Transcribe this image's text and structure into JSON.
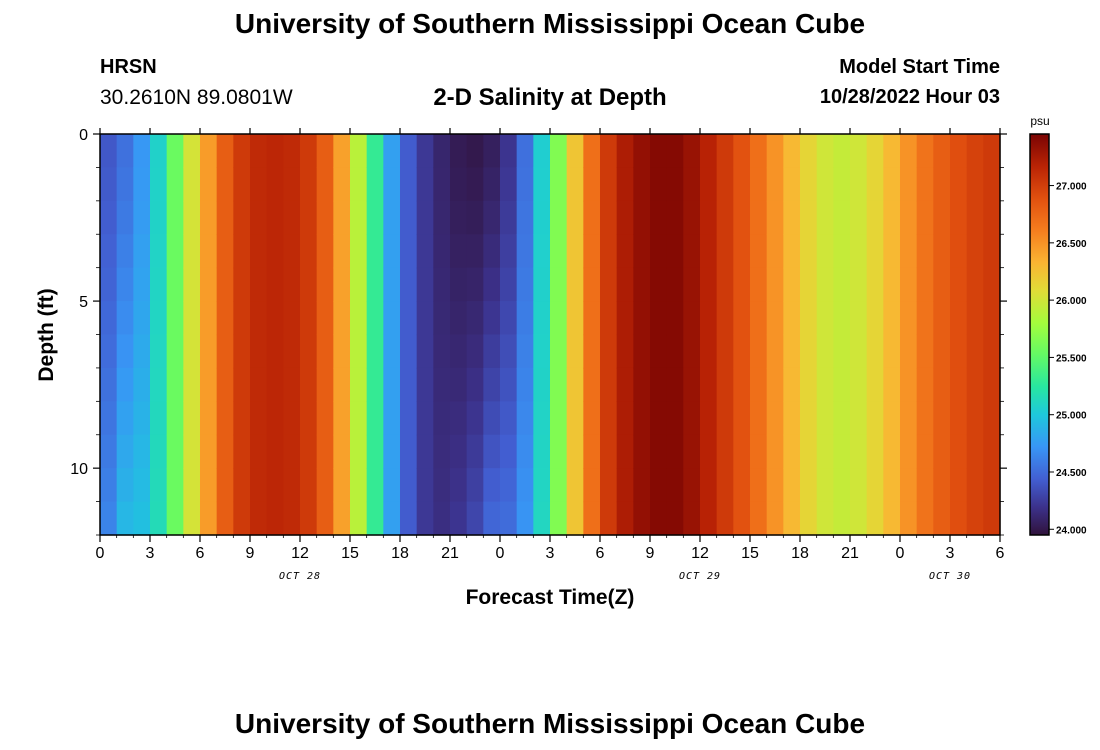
{
  "header": {
    "title": "University of Southern Mississippi Ocean Cube",
    "station_code": "HRSN",
    "station_coords": "30.2610N  89.0801W",
    "plot_title": "2-D Salinity at Depth",
    "model_start_label": "Model Start Time",
    "model_start_value": "10/28/2022 Hour 03"
  },
  "footer": {
    "title": "University of Southern Mississippi Ocean Cube"
  },
  "chart_data": {
    "type": "heatmap",
    "title": "2-D Salinity at Depth",
    "xlabel": "Forecast Time(Z)",
    "ylabel": "Depth (ft)",
    "x_range_hours": [
      0,
      54
    ],
    "y_range_ft": [
      0,
      12
    ],
    "x_tick_labels": [
      "0",
      "3",
      "6",
      "9",
      "12",
      "15",
      "18",
      "21",
      "0",
      "3",
      "6",
      "9",
      "12",
      "15",
      "18",
      "21",
      "0",
      "3",
      "6"
    ],
    "x_day_labels": [
      {
        "label": "OCT 28",
        "hour": 12
      },
      {
        "label": "OCT 29",
        "hour": 36
      },
      {
        "label": "OCT 30",
        "hour": 51
      }
    ],
    "y_tick_labels": [
      "0",
      "5",
      "10"
    ],
    "y_ticks": [
      0,
      5,
      10
    ],
    "colorbar": {
      "unit": "psu",
      "range": [
        23.95,
        27.45
      ],
      "tick_values": [
        24.0,
        24.5,
        25.0,
        25.5,
        26.0,
        26.5,
        27.0
      ],
      "tick_labels": [
        "24.000",
        "24.500",
        "25.000",
        "25.500",
        "26.000",
        "26.500",
        "27.000"
      ]
    },
    "surface_salinity_by_hour": [
      {
        "hour": 0,
        "value": 24.35
      },
      {
        "hour": 1,
        "value": 24.45
      },
      {
        "hour": 2,
        "value": 24.6
      },
      {
        "hour": 3,
        "value": 24.85
      },
      {
        "hour": 4,
        "value": 25.3
      },
      {
        "hour": 5,
        "value": 25.8
      },
      {
        "hour": 6,
        "value": 26.25
      },
      {
        "hour": 7,
        "value": 26.65
      },
      {
        "hour": 8,
        "value": 26.95
      },
      {
        "hour": 9,
        "value": 27.1
      },
      {
        "hour": 10,
        "value": 27.15
      },
      {
        "hour": 11,
        "value": 27.15
      },
      {
        "hour": 12,
        "value": 27.1
      },
      {
        "hour": 13,
        "value": 26.95
      },
      {
        "hour": 14,
        "value": 26.65
      },
      {
        "hour": 15,
        "value": 26.2
      },
      {
        "hour": 16,
        "value": 25.6
      },
      {
        "hour": 17,
        "value": 25.0
      },
      {
        "hour": 18,
        "value": 24.55
      },
      {
        "hour": 19,
        "value": 24.3
      },
      {
        "hour": 20,
        "value": 24.15
      },
      {
        "hour": 21,
        "value": 24.05
      },
      {
        "hour": 22,
        "value": 24.0
      },
      {
        "hour": 23,
        "value": 24.0
      },
      {
        "hour": 24,
        "value": 24.1
      },
      {
        "hour": 25,
        "value": 24.3
      },
      {
        "hour": 26,
        "value": 24.75
      },
      {
        "hour": 27,
        "value": 25.35
      },
      {
        "hour": 28,
        "value": 25.95
      },
      {
        "hour": 29,
        "value": 26.5
      },
      {
        "hour": 30,
        "value": 26.9
      },
      {
        "hour": 31,
        "value": 27.15
      },
      {
        "hour": 32,
        "value": 27.3
      },
      {
        "hour": 33,
        "value": 27.38
      },
      {
        "hour": 34,
        "value": 27.42
      },
      {
        "hour": 35,
        "value": 27.38
      },
      {
        "hour": 36,
        "value": 27.25
      },
      {
        "hour": 37,
        "value": 27.1
      },
      {
        "hour": 38,
        "value": 26.95
      },
      {
        "hour": 39,
        "value": 26.8
      },
      {
        "hour": 40,
        "value": 26.6
      },
      {
        "hour": 41,
        "value": 26.4
      },
      {
        "hour": 42,
        "value": 26.2
      },
      {
        "hour": 43,
        "value": 26.05
      },
      {
        "hour": 44,
        "value": 25.95
      },
      {
        "hour": 45,
        "value": 25.95
      },
      {
        "hour": 46,
        "value": 26.05
      },
      {
        "hour": 47,
        "value": 26.2
      },
      {
        "hour": 48,
        "value": 26.4
      },
      {
        "hour": 49,
        "value": 26.6
      },
      {
        "hour": 50,
        "value": 26.75
      },
      {
        "hour": 51,
        "value": 26.85
      },
      {
        "hour": 52,
        "value": 26.95
      },
      {
        "hour": 53,
        "value": 27.0
      },
      {
        "hour": 54,
        "value": 27.05
      }
    ],
    "depth_effect_note_free": [
      {
        "hour_from": 0,
        "hour_to": 3,
        "bottom_increase": 0.4
      },
      {
        "hour_from": 21,
        "hour_to": 26,
        "bottom_increase": 0.45
      }
    ]
  }
}
